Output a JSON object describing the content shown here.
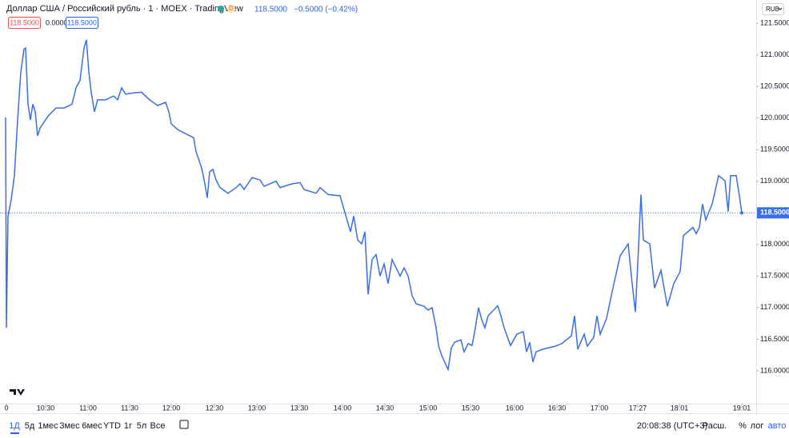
{
  "chart_data": {
    "type": "line",
    "title": "Доллар США / Российский рубль · 1 · MOEX · TradingView",
    "color": "#3a6ee6",
    "grid": false,
    "x": [
      7,
      8,
      10,
      14,
      18,
      22,
      26,
      30,
      32,
      35,
      38,
      41,
      44,
      47,
      50,
      60,
      70,
      80,
      90,
      95,
      100,
      105,
      108,
      111,
      114,
      118,
      122,
      132,
      142,
      147,
      152,
      157,
      167,
      177,
      187,
      197,
      207,
      211,
      214,
      222,
      234,
      242,
      245,
      252,
      256,
      259,
      262,
      266,
      270,
      275,
      285,
      295,
      300,
      305,
      315,
      325,
      330,
      345,
      350,
      365,
      375,
      380,
      395,
      400,
      410,
      425,
      430,
      435,
      438,
      442,
      447,
      452,
      456,
      460,
      465,
      470,
      475,
      480,
      485,
      490,
      500,
      505,
      510,
      515,
      520,
      530,
      535,
      540,
      545,
      548,
      552,
      560,
      564,
      568,
      576,
      580,
      585,
      590,
      594,
      598,
      602,
      606,
      610,
      622,
      626,
      630,
      638,
      646,
      654,
      658,
      662,
      666,
      670,
      678,
      694,
      702,
      714,
      718,
      722,
      730,
      734,
      742,
      746,
      750,
      758,
      766,
      775,
      785,
      790,
      794,
      797,
      801,
      804,
      812,
      818,
      826,
      834,
      842,
      850,
      854,
      866,
      870,
      874,
      878,
      882,
      890,
      898,
      902,
      906,
      910,
      913,
      920,
      924,
      927
    ],
    "values": [
      120.01,
      116.68,
      118.45,
      118.71,
      119.09,
      119.97,
      120.73,
      121.09,
      121.11,
      120.22,
      119.97,
      120.22,
      120.1,
      119.72,
      119.84,
      120.03,
      120.16,
      120.16,
      120.22,
      120.48,
      120.6,
      121.11,
      121.24,
      120.73,
      120.41,
      120.1,
      120.29,
      120.29,
      120.35,
      120.29,
      120.48,
      120.38,
      120.4,
      120.41,
      120.29,
      120.2,
      120.25,
      120.1,
      119.91,
      119.82,
      119.74,
      119.69,
      119.47,
      119.21,
      118.96,
      118.74,
      119.15,
      119.19,
      119.02,
      118.9,
      118.81,
      118.9,
      118.96,
      118.87,
      119.06,
      119.02,
      118.92,
      119.0,
      118.9,
      118.96,
      118.98,
      118.87,
      118.81,
      118.9,
      118.79,
      118.77,
      118.55,
      118.33,
      118.2,
      118.45,
      118.07,
      118.01,
      118.2,
      117.21,
      117.76,
      117.84,
      117.5,
      117.69,
      117.38,
      117.76,
      117.5,
      117.63,
      117.5,
      117.19,
      117.06,
      117.02,
      116.96,
      117.0,
      116.68,
      116.4,
      116.24,
      116.02,
      116.36,
      116.45,
      116.49,
      116.3,
      116.43,
      116.4,
      116.68,
      117.0,
      116.81,
      116.68,
      116.87,
      117.03,
      116.87,
      116.68,
      116.4,
      116.58,
      116.62,
      116.3,
      116.45,
      116.14,
      116.3,
      116.34,
      116.39,
      116.43,
      116.55,
      116.87,
      116.34,
      116.58,
      116.39,
      116.53,
      116.87,
      116.58,
      116.83,
      117.31,
      117.82,
      118.01,
      117.38,
      116.93,
      117.69,
      118.79,
      118.07,
      118.01,
      117.31,
      117.59,
      117.02,
      117.38,
      117.57,
      118.14,
      118.27,
      118.17,
      118.27,
      118.64,
      118.39,
      118.64,
      119.09,
      119.05,
      119.01,
      118.52,
      119.09,
      119.09,
      118.77,
      118.5
    ],
    "xlim": [
      0,
      945
    ],
    "ylim": [
      115.48,
      121.87
    ],
    "xticks": [
      {
        "value": 8,
        "label": "0"
      },
      {
        "value": 57,
        "label": "10:30"
      },
      {
        "value": 110,
        "label": "11:00"
      },
      {
        "value": 162,
        "label": "11:30"
      },
      {
        "value": 214,
        "label": "12:00"
      },
      {
        "value": 268,
        "label": "12:30"
      },
      {
        "value": 321,
        "label": "13:00"
      },
      {
        "value": 374,
        "label": "13:30"
      },
      {
        "value": 428,
        "label": "14:00"
      },
      {
        "value": 481,
        "label": "14:30"
      },
      {
        "value": 535,
        "label": "15:00"
      },
      {
        "value": 588,
        "label": "15:30"
      },
      {
        "value": 643,
        "label": "16:00"
      },
      {
        "value": 696,
        "label": "16:30"
      },
      {
        "value": 749,
        "label": "17:00"
      },
      {
        "value": 797,
        "label": "17:27"
      },
      {
        "value": 849,
        "label": "18:01"
      },
      {
        "value": 927,
        "label": "19:01"
      }
    ],
    "yticks": [
      {
        "value": 116,
        "label": "116.0000"
      },
      {
        "value": 116.5,
        "label": "116.5000"
      },
      {
        "value": 117,
        "label": "117.0000"
      },
      {
        "value": 117.5,
        "label": "117.5000"
      },
      {
        "value": 118,
        "label": "118.0000"
      },
      {
        "value": 118.5,
        "label": "118.5000"
      },
      {
        "value": 119,
        "label": "119.0000"
      },
      {
        "value": 119.5,
        "label": "119.5000"
      },
      {
        "value": 120,
        "label": "120.0000"
      },
      {
        "value": 120.5,
        "label": "120.5000"
      },
      {
        "value": 121,
        "label": "121.0000"
      },
      {
        "value": 121.5,
        "label": "121.5000"
      }
    ],
    "last_price": {
      "value": 118.5,
      "label": "118.5000"
    }
  },
  "header": {
    "badge": "D",
    "price": "118.5000",
    "change": "−0.5000 (−0.42%)",
    "currency": "RUB"
  },
  "legend": [
    "118.5000",
    "0.0000",
    "118.5000"
  ],
  "toolbar": {
    "ranges": [
      "1Д",
      "5д",
      "1мес",
      "3мес",
      "6мес",
      "YTD",
      "1г",
      "5л",
      "Все"
    ],
    "time": "20:08:38 (UTC+3)",
    "session": "Расш.",
    "percent": "%",
    "log": "лог",
    "auto": "авто"
  }
}
